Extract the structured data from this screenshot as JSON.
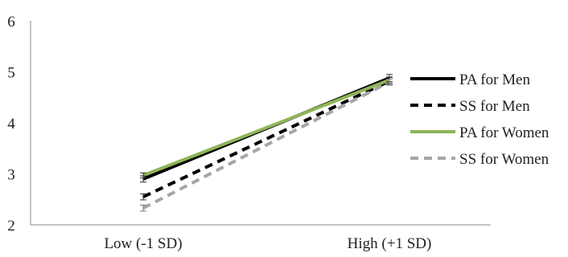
{
  "chart_data": {
    "type": "line",
    "categories": [
      "Low (-1 SD)",
      "High (+1 SD)"
    ],
    "ylim": [
      2,
      6
    ],
    "yticks": [
      "2",
      "3",
      "4",
      "5",
      "6"
    ],
    "grid": false,
    "legend_position": "right",
    "series": [
      {
        "name": "PA for Men",
        "values": [
          2.9,
          4.88
        ],
        "color": "#000000",
        "dash": "solid",
        "errors": [
          0.06,
          0.07
        ]
      },
      {
        "name": "SS for Men",
        "values": [
          2.55,
          4.82
        ],
        "color": "#000000",
        "dash": "dashed",
        "errors": [
          0.06,
          0.07
        ]
      },
      {
        "name": "PA for Women",
        "values": [
          2.97,
          4.84
        ],
        "color": "#8fb45a",
        "dash": "solid",
        "errors": [
          0.05,
          0.06
        ]
      },
      {
        "name": "SS for Women",
        "values": [
          2.33,
          4.8
        ],
        "color": "#a6a6a6",
        "dash": "dashed",
        "errors": [
          0.06,
          0.06
        ]
      }
    ]
  }
}
